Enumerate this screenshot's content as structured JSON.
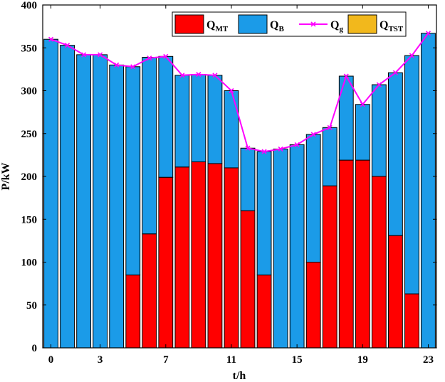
{
  "chart_data": {
    "type": "bar",
    "stacked": true,
    "x": [
      0,
      1,
      2,
      3,
      4,
      5,
      6,
      7,
      8,
      9,
      10,
      11,
      12,
      13,
      14,
      15,
      16,
      17,
      18,
      19,
      20,
      21,
      22,
      23
    ],
    "xticks": [
      0,
      3,
      7,
      11,
      15,
      19,
      23
    ],
    "xlabel": "t/h",
    "ylabel": "P/kW",
    "ylim": [
      0,
      400
    ],
    "yticks": [
      0,
      50,
      100,
      150,
      200,
      250,
      300,
      350,
      400
    ],
    "grid": false,
    "legend_position": "top-right",
    "series": [
      {
        "name": "Q",
        "sub": "MT",
        "type": "bar",
        "color": "#ff0000",
        "values": [
          0,
          0,
          0,
          0,
          0,
          85,
          133,
          199,
          211,
          217,
          215,
          210,
          160,
          85,
          0,
          0,
          100,
          189,
          219,
          219,
          200,
          131,
          63,
          0
        ]
      },
      {
        "name": "Q",
        "sub": "B",
        "type": "bar",
        "color": "#1b9be8",
        "values": [
          360,
          353,
          342,
          342,
          330,
          243,
          206,
          141,
          107,
          102,
          103,
          90,
          73,
          144,
          232,
          237,
          149,
          68,
          98,
          65,
          107,
          190,
          278,
          367
        ]
      },
      {
        "name": "Q",
        "sub": "g",
        "type": "line",
        "color": "#ff00ff",
        "marker": "x",
        "values": [
          360,
          353,
          342,
          342,
          330,
          328,
          338,
          340,
          318,
          319,
          318,
          300,
          233,
          229,
          232,
          237,
          249,
          257,
          317,
          284,
          307,
          321,
          341,
          367
        ]
      },
      {
        "name": "Q",
        "sub": "TST",
        "type": "bar",
        "color": "#f2b81c",
        "values": [
          0,
          0,
          0,
          0,
          0,
          0,
          0,
          0,
          0,
          0,
          0,
          0,
          0,
          0,
          0,
          0,
          0,
          0,
          0,
          0,
          0,
          0,
          0,
          0
        ]
      }
    ]
  }
}
